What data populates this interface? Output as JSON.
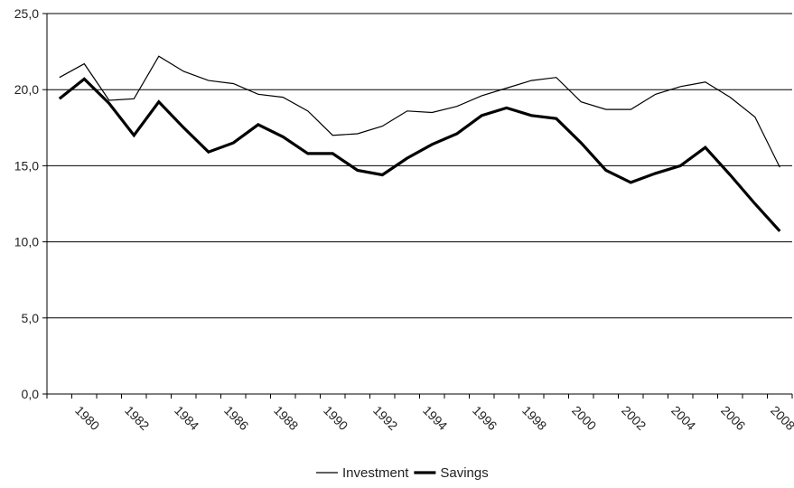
{
  "chart_data": {
    "type": "line",
    "title": "",
    "xlabel": "",
    "ylabel": "",
    "x": [
      1979,
      1980,
      1981,
      1982,
      1983,
      1984,
      1985,
      1986,
      1987,
      1988,
      1989,
      1990,
      1991,
      1992,
      1993,
      1994,
      1995,
      1996,
      1997,
      1998,
      1999,
      2000,
      2001,
      2002,
      2003,
      2004,
      2005,
      2006,
      2007,
      2008
    ],
    "x_tick_labels": [
      "1980",
      "1982",
      "1984",
      "1986",
      "1988",
      "1990",
      "1992",
      "1994",
      "1996",
      "1998",
      "2000",
      "2002",
      "2004",
      "2006",
      "2008"
    ],
    "ylim": [
      0,
      25
    ],
    "y_tick_labels": [
      "0,0",
      "5,0",
      "10,0",
      "15,0",
      "20,0",
      "25,0"
    ],
    "grid": "horizontal",
    "legend_position": "bottom",
    "series": [
      {
        "name": "Investment",
        "color": "#000000",
        "values": [
          20.8,
          21.7,
          19.3,
          19.4,
          22.2,
          21.2,
          20.6,
          20.4,
          19.7,
          19.5,
          18.6,
          17.0,
          17.1,
          17.6,
          18.6,
          18.5,
          18.9,
          19.6,
          20.1,
          20.6,
          20.8,
          19.2,
          18.7,
          18.7,
          19.7,
          20.2,
          20.5,
          19.5,
          18.2,
          14.9
        ]
      },
      {
        "name": "Savings",
        "color": "#000000",
        "values": [
          19.4,
          20.7,
          19.1,
          17.0,
          19.2,
          17.5,
          15.9,
          16.5,
          17.7,
          16.9,
          15.8,
          15.8,
          14.7,
          14.4,
          15.5,
          16.4,
          17.1,
          18.3,
          18.8,
          18.3,
          18.1,
          16.5,
          14.7,
          13.9,
          14.5,
          15.0,
          16.2,
          14.4,
          12.5,
          10.7
        ]
      }
    ]
  }
}
